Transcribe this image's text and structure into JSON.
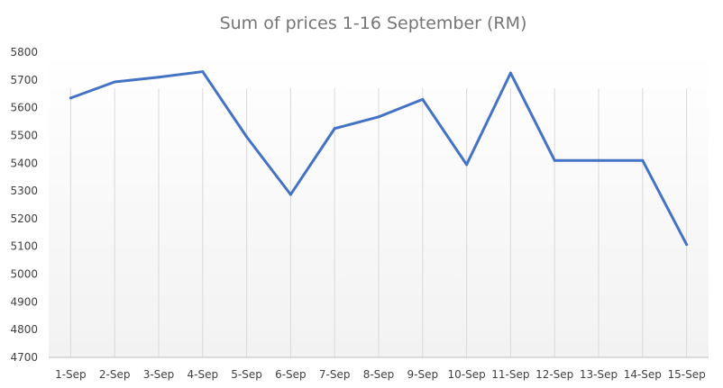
{
  "chart_data": {
    "type": "line",
    "title": "Sum of prices 1-16 September (RM)",
    "xlabel": "",
    "ylabel": "",
    "categories": [
      "1-Sep",
      "2-Sep",
      "3-Sep",
      "4-Sep",
      "5-Sep",
      "6-Sep",
      "7-Sep",
      "8-Sep",
      "9-Sep",
      "10-Sep",
      "11-Sep",
      "12-Sep",
      "13-Sep",
      "14-Sep",
      "15-Sep"
    ],
    "series": [
      {
        "values": [
          5635,
          5693,
          5710,
          5730,
          5495,
          5287,
          5525,
          5567,
          5630,
          5395,
          5725,
          5410,
          5410,
          5410,
          5107
        ]
      }
    ],
    "ylim": [
      4700,
      5800
    ],
    "yticks": [
      4700,
      4800,
      4900,
      5000,
      5100,
      5200,
      5300,
      5400,
      5500,
      5600,
      5700,
      5800
    ],
    "grid": "vertical",
    "legend": "none",
    "line_color": "#4472c4",
    "grid_color": "#d9d9d9",
    "background_gradient": [
      "#ffffff",
      "#f2f2f2"
    ]
  }
}
